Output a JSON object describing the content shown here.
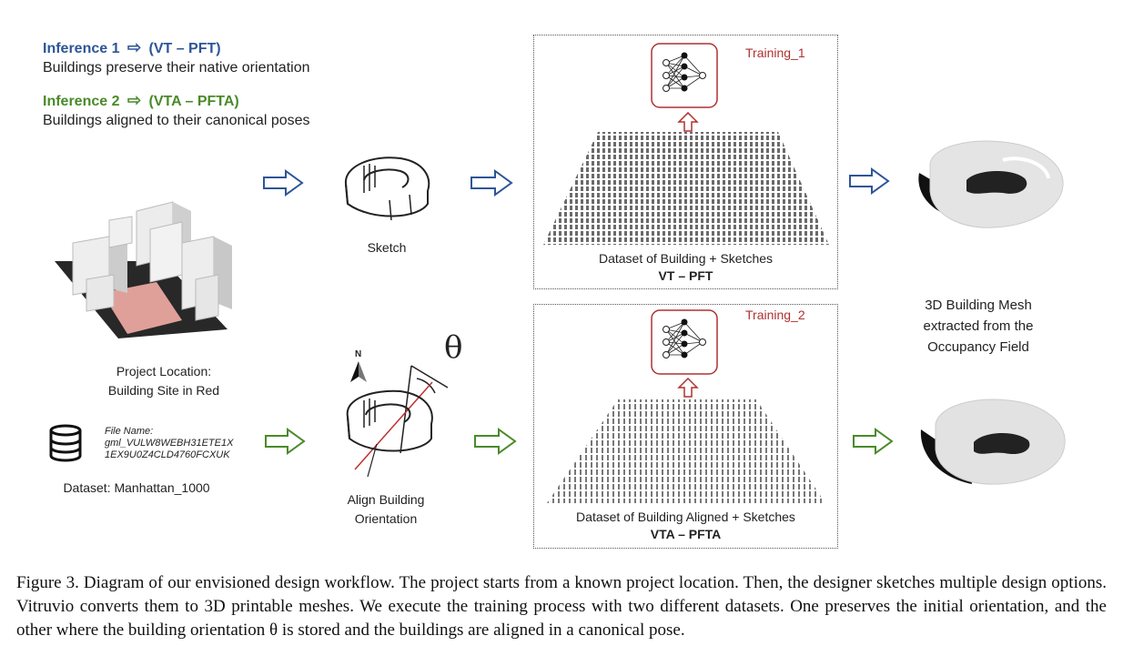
{
  "legend": {
    "inference1": {
      "label": "Inference 1",
      "arrow_target": "(VT – PFT)",
      "desc": "Buildings preserve their native orientation",
      "color": "#2e5597"
    },
    "inference2": {
      "label": "Inference 2",
      "arrow_target": "(VTA – PFTA)",
      "desc": "Buildings aligned to their canonical poses",
      "color": "#4a8a2a"
    }
  },
  "left": {
    "project_location": "Project Location:",
    "building_site": "Building Site in Red",
    "file_name_label": "File Name:",
    "file_name_1": "gml_VULW8WEBH31ETE1X",
    "file_name_2": "1EX9U0Z4CLD4760FCXUK",
    "dataset": "Dataset: Manhattan_1000"
  },
  "middle": {
    "sketch_label": "Sketch",
    "north": "N",
    "theta": "θ",
    "align_line1": "Align Building",
    "align_line2": "Orientation"
  },
  "panel1": {
    "training": "Training_1",
    "dataset_desc": "Dataset of Building + Sketches",
    "dataset_code": "VT – PFT"
  },
  "panel2": {
    "training": "Training_2",
    "dataset_desc": "Dataset of Building Aligned + Sketches",
    "dataset_code": "VTA – PFTA"
  },
  "right": {
    "mesh_line1": "3D Building Mesh",
    "mesh_line2": "extracted from the",
    "mesh_line3": "Occupancy Field"
  },
  "caption": "Figure 3.  Diagram of our envisioned design workflow.  The project starts from a known project location.  Then, the designer sketches multiple design options. Vitruvio converts them to 3D printable meshes. We execute the training process with two different datasets. One preserves the initial orientation, and the other where the building orientation θ is stored and the buildings are aligned in a canonical pose.",
  "colors": {
    "blue": "#2e5597",
    "green": "#4a8a2a",
    "red": "#b03030",
    "site": "#e0a09a"
  }
}
